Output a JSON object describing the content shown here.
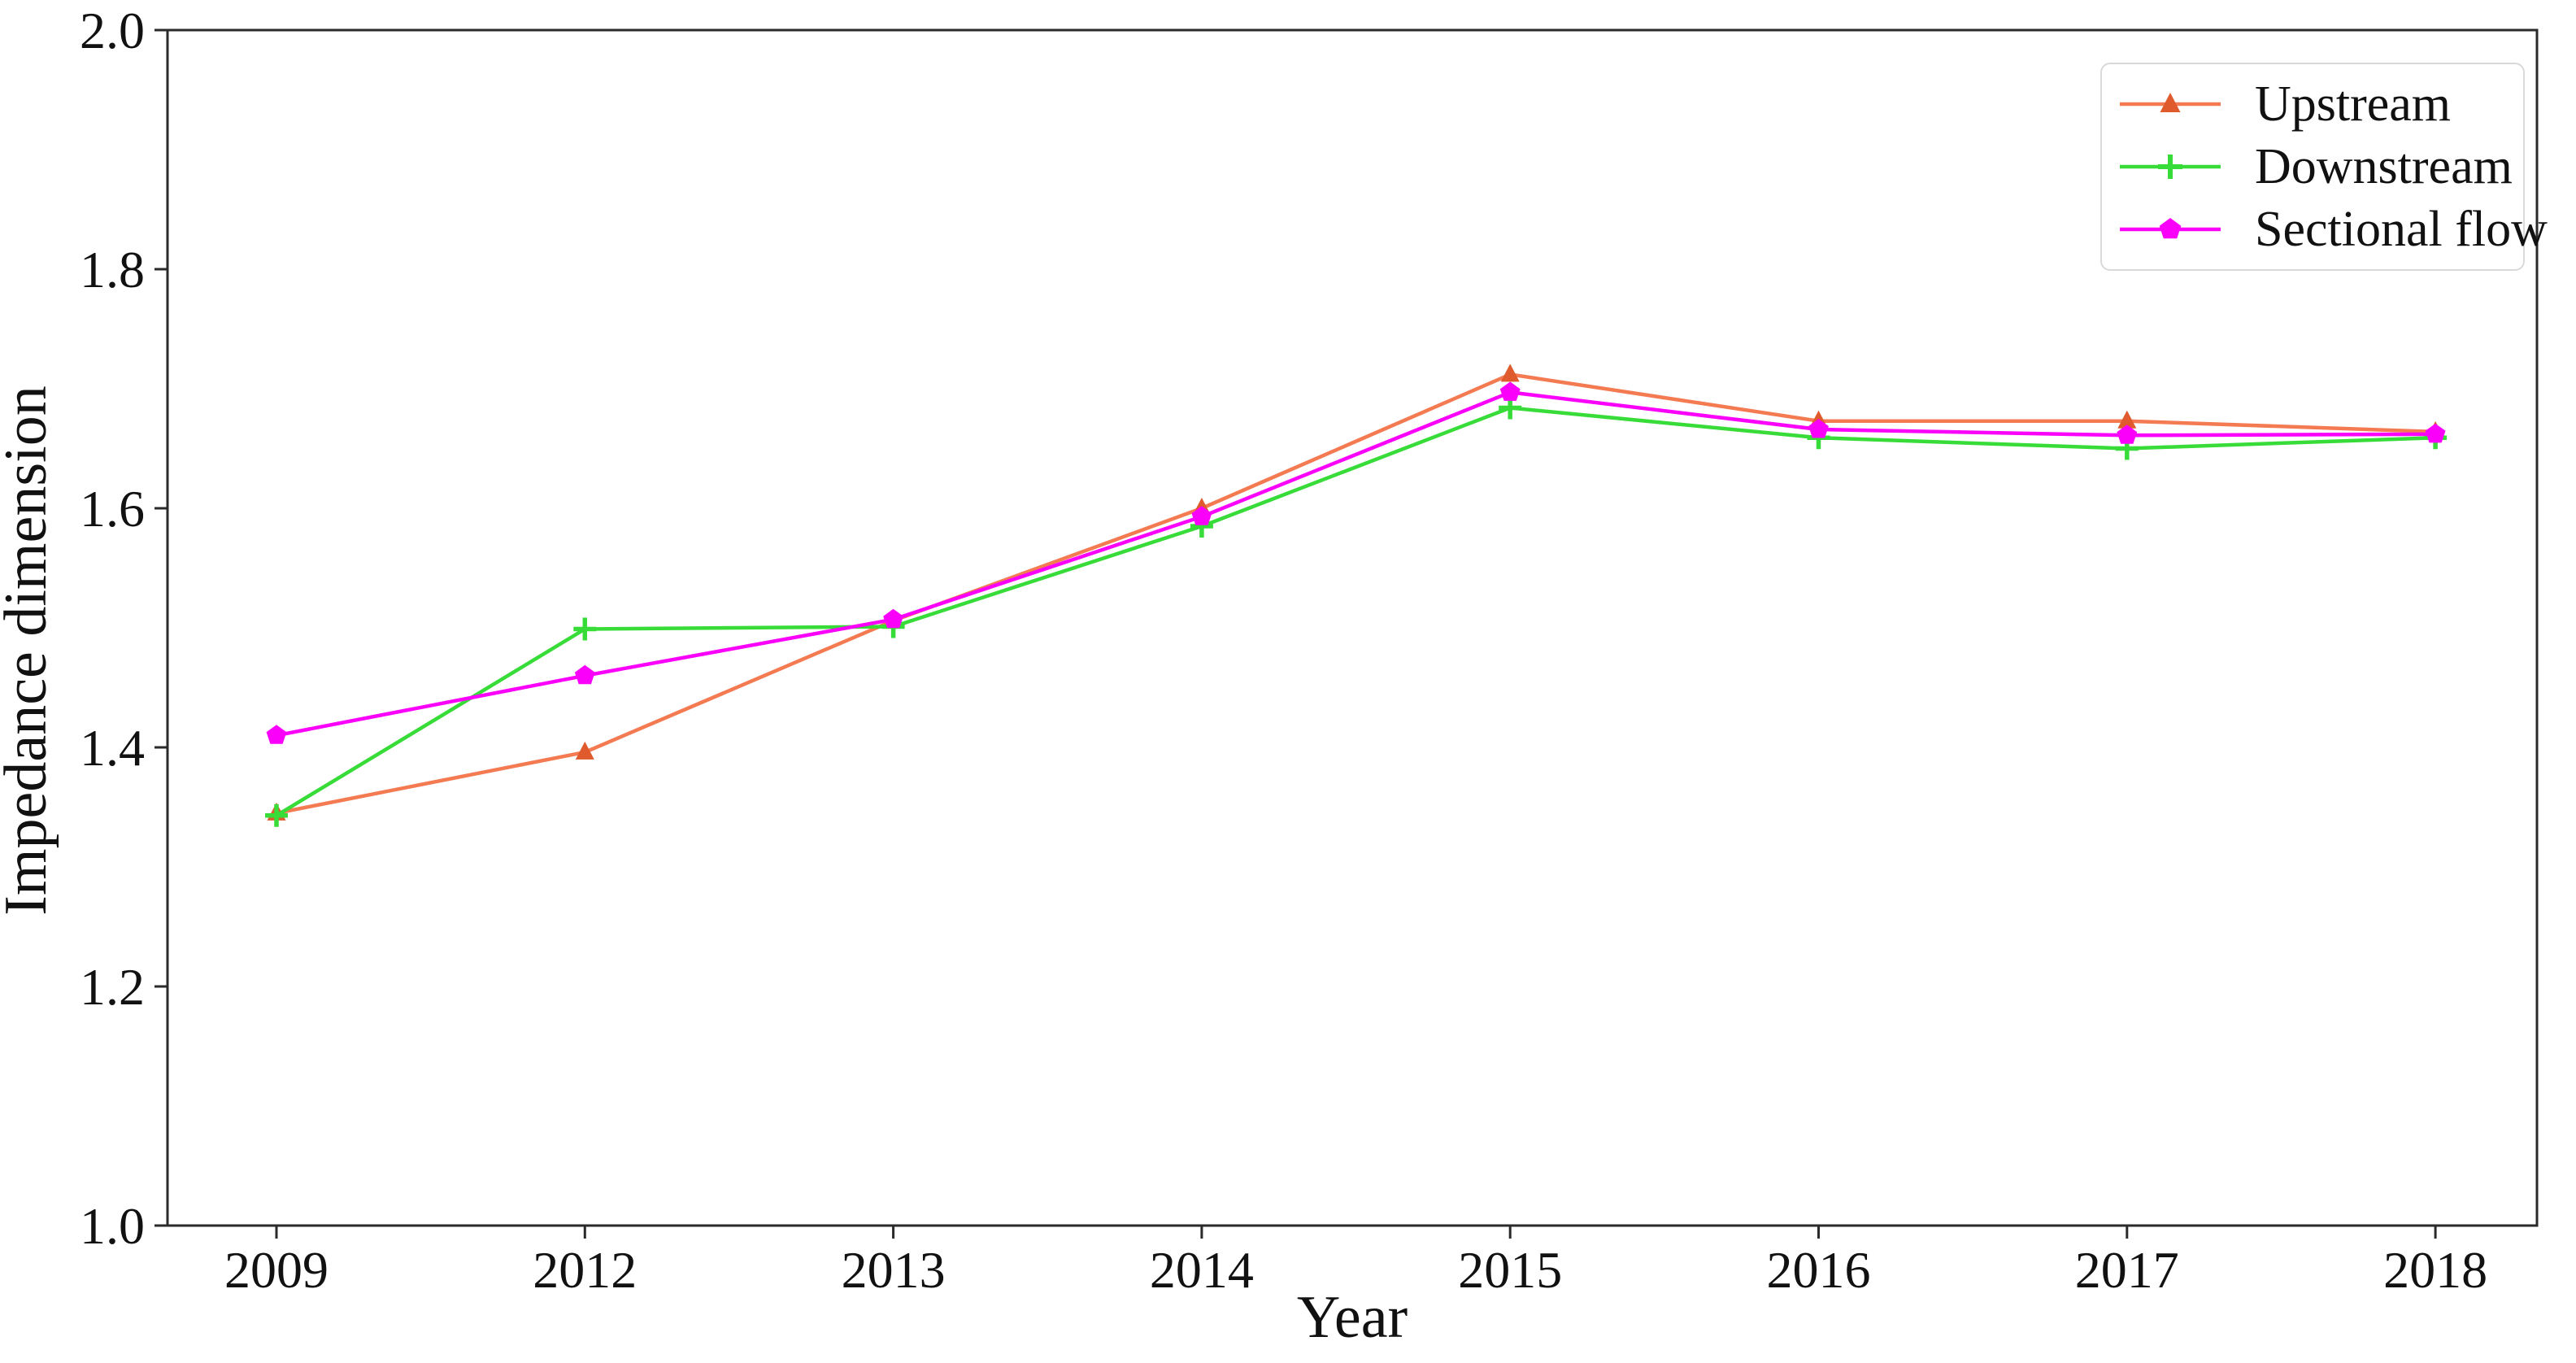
{
  "figure": {
    "background_color": "#ffffff",
    "spine_color": "#2a2a2a"
  },
  "chart_data": {
    "type": "line",
    "title": "",
    "xlabel": "Year",
    "ylabel": "Impedance dimension",
    "categories": [
      "2009",
      "2012",
      "2013",
      "2014",
      "2015",
      "2016",
      "2017",
      "2018"
    ],
    "ylim": [
      1.0,
      2.0
    ],
    "yticks": [
      "1.0",
      "1.2",
      "1.4",
      "1.6",
      "1.8",
      "2.0"
    ],
    "ytick_values": [
      1.0,
      1.2,
      1.4,
      1.6,
      1.8,
      2.0
    ],
    "grid": "off",
    "legend_position": "upper right",
    "series": [
      {
        "name": "Upstream",
        "color": "#f47a52",
        "marker": "triangle-up",
        "marker_color": "#df5a2d",
        "values": [
          1.345,
          1.396,
          1.506,
          1.6,
          1.712,
          1.673,
          1.673,
          1.664
        ]
      },
      {
        "name": "Downstream",
        "color": "#38dc38",
        "marker": "plus",
        "marker_color": "#38dc38",
        "values": [
          1.343,
          1.499,
          1.501,
          1.585,
          1.684,
          1.659,
          1.65,
          1.659
        ]
      },
      {
        "name": "Sectional flow",
        "color": "#fa00fa",
        "marker": "pentagon",
        "marker_color": "#fa00fa",
        "values": [
          1.41,
          1.46,
          1.507,
          1.593,
          1.697,
          1.666,
          1.661,
          1.662
        ]
      }
    ]
  }
}
